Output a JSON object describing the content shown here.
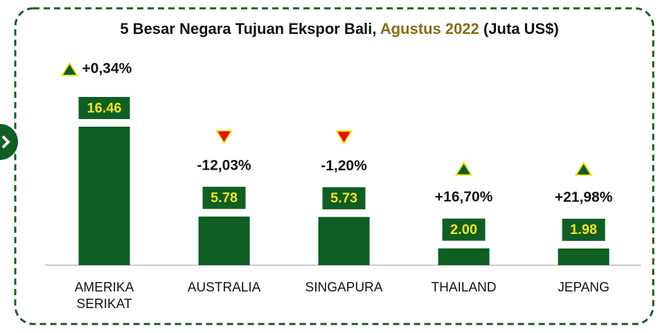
{
  "chart_data": {
    "type": "bar",
    "title": "5 Besar Negara Tujuan Ekspor Bali,",
    "title_highlight": "Agustus 2022",
    "title_unit": "(Juta US$)",
    "categories": [
      "AMERIKA SERIKAT",
      "AUSTRALIA",
      "SINGAPURA",
      "THAILAND",
      "JEPANG"
    ],
    "values": [
      16.46,
      5.78,
      5.73,
      2.0,
      1.98
    ],
    "value_labels": [
      "16.46",
      "5.78",
      "5.73",
      "2.00",
      "1.98"
    ],
    "changes": [
      0.34,
      -12.03,
      -1.2,
      16.7,
      21.98
    ],
    "change_labels": [
      "+0,34%",
      "-12,03%",
      "-1,20%",
      "+16,70%",
      "+21,98%"
    ],
    "color": "#0f5e23",
    "label_text_color": "#f5e61a",
    "up_color": "#0f5e23",
    "down_color": "#e0101a",
    "highlight_color": "#8a6a14"
  }
}
